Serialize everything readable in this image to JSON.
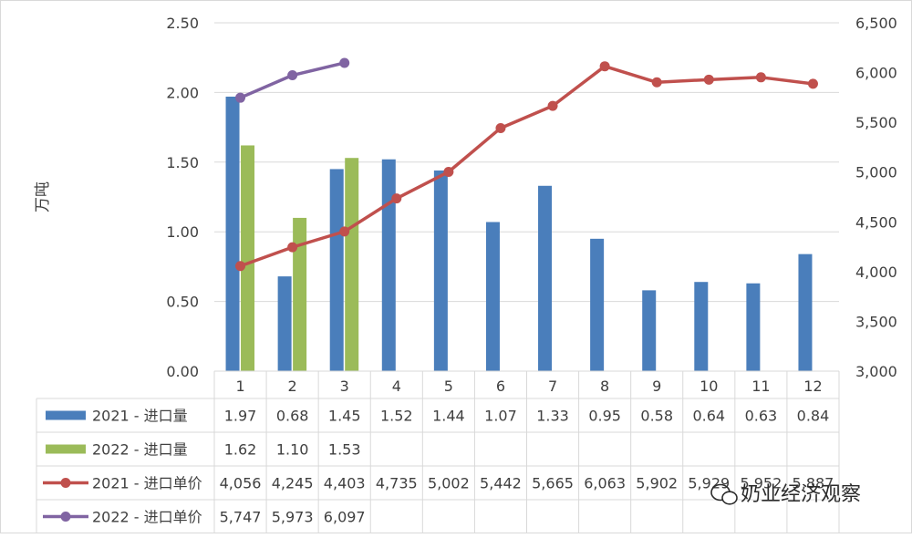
{
  "chart_data": {
    "type": "bar",
    "categories": [
      "1",
      "2",
      "3",
      "4",
      "5",
      "6",
      "7",
      "8",
      "9",
      "10",
      "11",
      "12"
    ],
    "bar_series": [
      {
        "name": "2021 - 进口量",
        "color": "#4a7ebb",
        "values": [
          1.97,
          0.68,
          1.45,
          1.52,
          1.44,
          1.07,
          1.33,
          0.95,
          0.58,
          0.64,
          0.63,
          0.84
        ],
        "labels": [
          "1.97",
          "0.68",
          "1.45",
          "1.52",
          "1.44",
          "1.07",
          "1.33",
          "0.95",
          "0.58",
          "0.64",
          "0.63",
          "0.84"
        ]
      },
      {
        "name": "2022 - 进口量",
        "color": "#9bbb59",
        "values": [
          1.62,
          1.1,
          1.53
        ],
        "labels": [
          "1.62",
          "1.10",
          "1.53"
        ]
      }
    ],
    "line_series": [
      {
        "name": "2021 - 进口单价",
        "color": "#c0504d",
        "values": [
          4056,
          4245,
          4403,
          4735,
          5002,
          5442,
          5665,
          6063,
          5902,
          5929,
          5952,
          5887
        ],
        "labels": [
          "4,056",
          "4,245",
          "4,403",
          "4,735",
          "5,002",
          "5,442",
          "5,665",
          "6,063",
          "5,902",
          "5,929",
          "5,952",
          "5,887"
        ]
      },
      {
        "name": "2022 - 进口单价",
        "color": "#8064a2",
        "values": [
          5747,
          5973,
          6097
        ],
        "labels": [
          "5,747",
          "5,973",
          "6,097"
        ]
      }
    ],
    "y_left": {
      "label": "万吨",
      "min": 0,
      "max": 2.5,
      "ticks": [
        "0.00",
        "0.50",
        "1.00",
        "1.50",
        "2.00",
        "2.50"
      ]
    },
    "y_right": {
      "min": 3000,
      "max": 6500,
      "ticks": [
        "3,000",
        "3,500",
        "4,000",
        "4,500",
        "5,000",
        "5,500",
        "6,000",
        "6,500"
      ]
    },
    "data_table": true,
    "gridlines": true
  },
  "watermark": {
    "text": "奶业经济观察"
  }
}
